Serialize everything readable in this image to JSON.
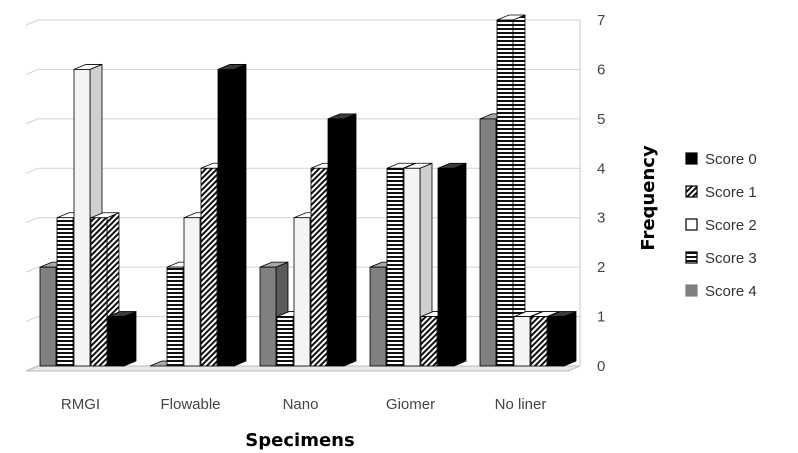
{
  "chart_data": {
    "type": "bar",
    "title": "",
    "xlabel": "Specimens",
    "ylabel": "Frequency",
    "categories": [
      "RMGI",
      "Flowable",
      "Nano",
      "Giomer",
      "No liner"
    ],
    "yticks": [
      "0",
      "1",
      "2",
      "3",
      "4",
      "5",
      "6",
      "7"
    ],
    "ylim": [
      0,
      7
    ],
    "grid": true,
    "legend_position": "right",
    "style": "3d-clustered-column",
    "series": [
      {
        "name": "Score 4",
        "values": [
          2,
          0,
          2,
          2,
          5
        ],
        "pattern": "solid-gray",
        "color": "#808080"
      },
      {
        "name": "Score 3",
        "values": [
          3,
          2,
          1,
          4,
          7
        ],
        "pattern": "horizontal-lines",
        "color": "#000000"
      },
      {
        "name": "Score 2",
        "values": [
          6,
          3,
          3,
          4,
          1
        ],
        "pattern": "white",
        "color": "#f2f2f2"
      },
      {
        "name": "Score 1",
        "values": [
          3,
          4,
          4,
          1,
          1
        ],
        "pattern": "diagonal-lines",
        "color": "#000000"
      },
      {
        "name": "Score 0",
        "values": [
          1,
          6,
          5,
          4,
          1
        ],
        "pattern": "solid-black",
        "color": "#000000"
      }
    ],
    "legend_order": [
      "Score 0",
      "Score 1",
      "Score 2",
      "Score 3",
      "Score 4"
    ]
  }
}
